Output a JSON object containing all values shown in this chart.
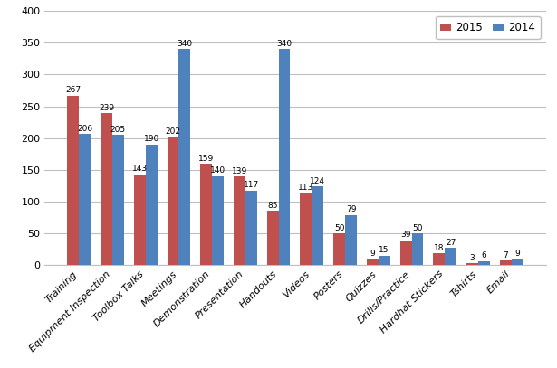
{
  "categories": [
    "Training",
    "Equipment Inspection",
    "Toolbox Talks",
    "Meetings",
    "Demonstration",
    "Presentation",
    "Handouts",
    "Videos",
    "Posters",
    "Quizzes",
    "Drills/Practice",
    "Hardhat Stickers",
    "Tshirts",
    "Email"
  ],
  "values_2015": [
    267,
    239,
    143,
    202,
    159,
    139,
    85,
    113,
    50,
    9,
    39,
    18,
    3,
    7
  ],
  "values_2014": [
    206,
    205,
    190,
    340,
    140,
    117,
    340,
    124,
    79,
    15,
    50,
    27,
    6,
    9
  ],
  "color_2015": "#C0504D",
  "color_2014": "#4F81BD",
  "legend_labels": [
    "2015",
    "2014"
  ],
  "ylim": [
    0,
    400
  ],
  "yticks": [
    0,
    50,
    100,
    150,
    200,
    250,
    300,
    350,
    400
  ],
  "bar_width": 0.35,
  "label_fontsize": 6.5,
  "tick_fontsize": 8,
  "legend_fontsize": 8.5,
  "fig_width": 6.15,
  "fig_height": 4.07
}
